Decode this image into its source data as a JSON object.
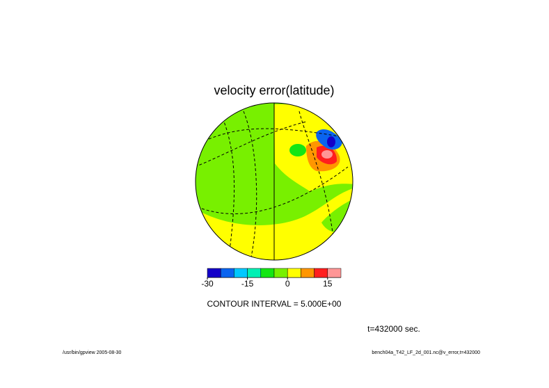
{
  "title": "velocity error(latitude)",
  "colorbar": {
    "colors": [
      "#1400c8",
      "#0a64f0",
      "#00c8ff",
      "#00f0b4",
      "#14e614",
      "#78f000",
      "#ffff00",
      "#ff9600",
      "#ff1e1e",
      "#ff9696"
    ],
    "range": [
      -30,
      20
    ],
    "ticks": [
      -30,
      -15,
      0,
      15
    ]
  },
  "contour_interval": "CONTOUR INTERVAL = 5.000E+00",
  "time": "t=432000 sec.",
  "footer_left": "/usr/bin/gpview  2005-08-30",
  "footer_right": "bench04a_T42_LF_2d_001.nc@v_error,t=432000"
}
